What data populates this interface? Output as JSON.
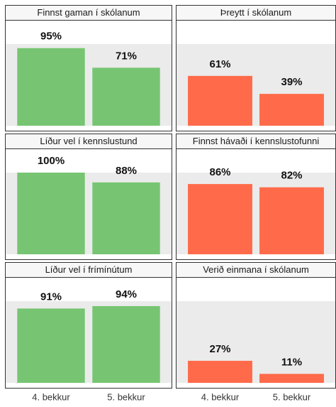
{
  "chart_data": [
    {
      "type": "bar",
      "title": "Finnst gaman í skólanum",
      "categories": [
        "4. bekkur",
        "5. bekkur"
      ],
      "values": [
        95,
        71
      ],
      "value_labels": [
        "95%",
        "71%"
      ],
      "color": "#77c572",
      "ylim": [
        0,
        100
      ]
    },
    {
      "type": "bar",
      "title": "Þreytt í skólanum",
      "categories": [
        "4. bekkur",
        "5. bekkur"
      ],
      "values": [
        61,
        39
      ],
      "value_labels": [
        "61%",
        "39%"
      ],
      "color": "#ff6b4a",
      "ylim": [
        0,
        100
      ]
    },
    {
      "type": "bar",
      "title": "Líður vel í kennslustund",
      "categories": [
        "4. bekkur",
        "5. bekkur"
      ],
      "values": [
        100,
        88
      ],
      "value_labels": [
        "100%",
        "88%"
      ],
      "color": "#77c572",
      "ylim": [
        0,
        100
      ]
    },
    {
      "type": "bar",
      "title": "Finnst hávaði í kennslustofunni",
      "categories": [
        "4. bekkur",
        "5. bekkur"
      ],
      "values": [
        86,
        82
      ],
      "value_labels": [
        "86%",
        "82%"
      ],
      "color": "#ff6b4a",
      "ylim": [
        0,
        100
      ]
    },
    {
      "type": "bar",
      "title": "Líður vel í frímínútum",
      "categories": [
        "4. bekkur",
        "5. bekkur"
      ],
      "values": [
        91,
        94
      ],
      "value_labels": [
        "91%",
        "94%"
      ],
      "color": "#77c572",
      "ylim": [
        0,
        100
      ]
    },
    {
      "type": "bar",
      "title": "Verið einmana í skólanum",
      "categories": [
        "4. bekkur",
        "5. bekkur"
      ],
      "values": [
        27,
        11
      ],
      "value_labels": [
        "27%",
        "11%"
      ],
      "color": "#ff6b4a",
      "ylim": [
        0,
        100
      ]
    }
  ]
}
